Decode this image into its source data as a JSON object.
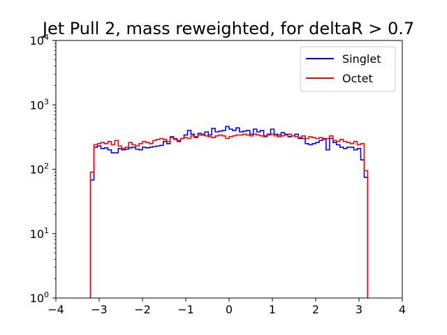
{
  "chart_data": {
    "type": "line",
    "title": "Jet Pull 2, mass reweighted, for deltaR > 0.7",
    "xlabel": "",
    "ylabel": "",
    "xlim": [
      -4,
      4
    ],
    "ylim": [
      1,
      10000
    ],
    "yscale": "log",
    "grid": false,
    "legend_position": "top-right",
    "x_ticks": [
      {
        "value": -4,
        "label": "−4"
      },
      {
        "value": -3,
        "label": "−3"
      },
      {
        "value": -2,
        "label": "−2"
      },
      {
        "value": -1,
        "label": "−1"
      },
      {
        "value": 0,
        "label": "0"
      },
      {
        "value": 1,
        "label": "1"
      },
      {
        "value": 2,
        "label": "2"
      },
      {
        "value": 3,
        "label": "3"
      },
      {
        "value": 4,
        "label": "4"
      }
    ],
    "y_ticks": [
      {
        "value": 1,
        "base": "10",
        "exp": "0"
      },
      {
        "value": 10,
        "base": "10",
        "exp": "1"
      },
      {
        "value": 100,
        "base": "10",
        "exp": "2"
      },
      {
        "value": 1000,
        "base": "10",
        "exp": "3"
      },
      {
        "value": 10000,
        "base": "10",
        "exp": "4"
      }
    ],
    "bin_edges_range": [
      -3.2,
      3.2
    ],
    "bin_count": 80,
    "series": [
      {
        "name": "Singlet",
        "color": "#0000ff",
        "values": [
          68,
          220,
          230,
          210,
          215,
          200,
          180,
          180,
          210,
          200,
          205,
          215,
          220,
          205,
          200,
          220,
          215,
          220,
          225,
          230,
          235,
          270,
          250,
          320,
          300,
          270,
          300,
          340,
          400,
          350,
          320,
          360,
          340,
          380,
          340,
          430,
          380,
          390,
          400,
          460,
          420,
          400,
          440,
          380,
          390,
          400,
          350,
          420,
          380,
          400,
          330,
          350,
          420,
          350,
          340,
          370,
          350,
          320,
          330,
          350,
          300,
          300,
          250,
          240,
          250,
          260,
          280,
          300,
          200,
          300,
          260,
          240,
          220,
          210,
          220,
          220,
          200,
          210,
          140,
          75
        ]
      },
      {
        "name": "Octet",
        "color": "#ff0000",
        "values": [
          90,
          240,
          250,
          260,
          250,
          270,
          240,
          280,
          230,
          210,
          220,
          260,
          240,
          230,
          250,
          270,
          260,
          250,
          280,
          290,
          300,
          290,
          270,
          310,
          290,
          280,
          300,
          310,
          300,
          330,
          310,
          340,
          350,
          330,
          320,
          310,
          330,
          340,
          330,
          300,
          320,
          330,
          340,
          340,
          350,
          340,
          330,
          350,
          340,
          330,
          320,
          340,
          350,
          330,
          320,
          330,
          340,
          350,
          330,
          320,
          310,
          330,
          300,
          320,
          310,
          300,
          310,
          290,
          300,
          330,
          280,
          270,
          290,
          270,
          260,
          250,
          270,
          240,
          250,
          95
        ]
      }
    ]
  }
}
